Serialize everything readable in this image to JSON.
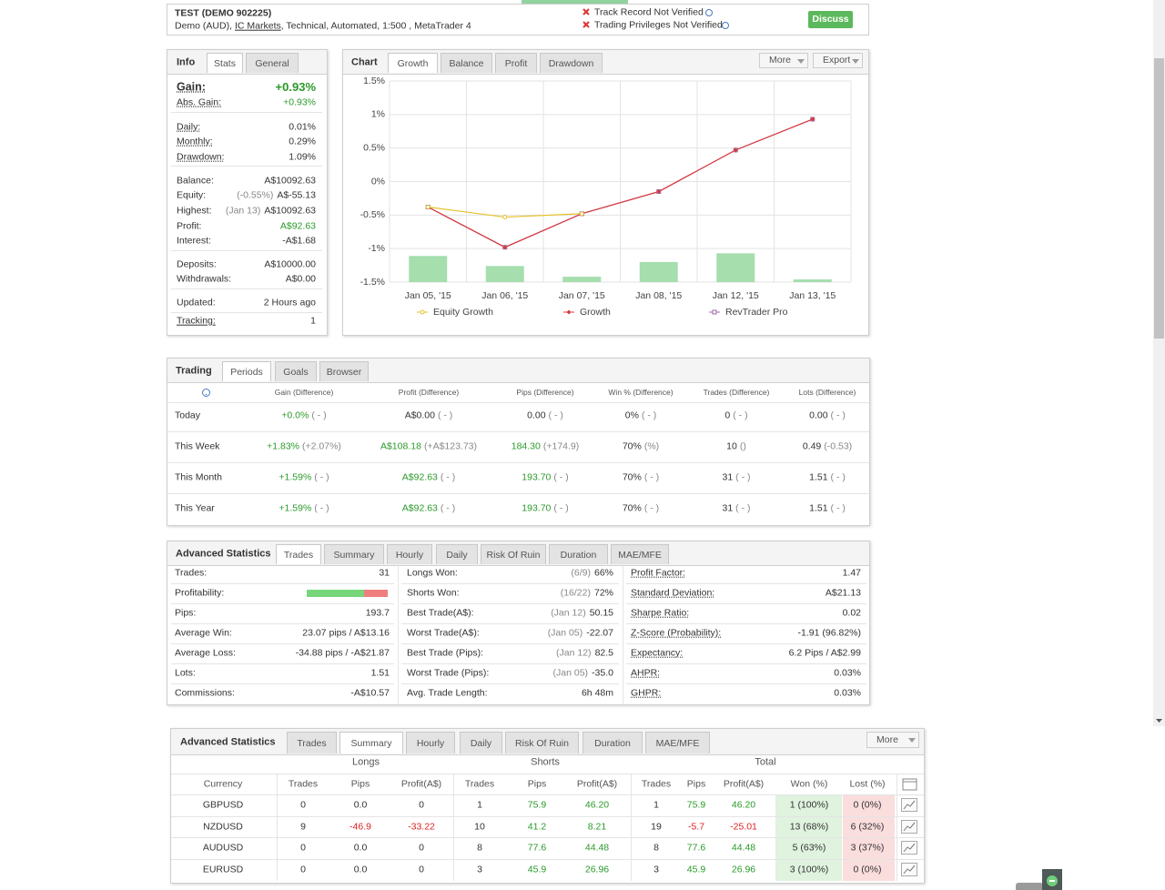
{
  "header": {
    "title": "TEST (DEMO 902225)",
    "sub_pre": "Demo (AUD),",
    "broker": "IC Markets",
    "sub_post": ", Technical, Automated, 1:500 , MetaTrader 4",
    "notices": [
      "Track Record Not Verified",
      "Trading Privileges Not Verified"
    ],
    "button": "Discuss"
  },
  "info": {
    "title": "Info",
    "tabs": [
      "Stats",
      "General"
    ],
    "groups": [
      [
        {
          "label": "Gain:",
          "value": "+0.93%"
        },
        {
          "label": "Abs. Gain:",
          "value": "+0.93%"
        }
      ],
      [
        {
          "label": "Daily:",
          "value": "0.01%"
        },
        {
          "label": "Monthly:",
          "value": "0.29%"
        },
        {
          "label": "Drawdown:",
          "value": "1.09%"
        }
      ],
      [
        {
          "label": "Balance:",
          "value": "A$10092.63"
        },
        {
          "label": "Equity:",
          "note": "(-0.55%)",
          "value": "A$-55.13"
        },
        {
          "label": "Highest:",
          "note": "(Jan 13)",
          "value": "A$10092.63"
        },
        {
          "label": "Profit:",
          "value": "A$92.63"
        },
        {
          "label": "Interest:",
          "value": "-A$1.68"
        }
      ],
      [
        {
          "label": "Deposits:",
          "value": "A$10000.00"
        },
        {
          "label": "Withdrawals:",
          "value": "A$0.00"
        }
      ],
      [
        {
          "label": "Updated:",
          "value": "2 Hours ago"
        },
        {
          "label": "Tracking:",
          "value": "1"
        }
      ]
    ]
  },
  "chart_panel": {
    "title": "Chart",
    "tabs": [
      "Growth",
      "Balance",
      "Profit",
      "Drawdown"
    ],
    "menus": [
      "More",
      "Export"
    ]
  },
  "chart_data": {
    "type": "line",
    "categories": [
      "Jan 05, '15",
      "Jan 06, '15",
      "Jan 07, '15",
      "Jan 08, '15",
      "Jan 12, '15",
      "Jan 13, '15"
    ],
    "ylim": [
      -1.5,
      1.5
    ],
    "yticks": [
      {
        "value": 1.5,
        "label": "1.5%"
      },
      {
        "value": 1,
        "label": "1%"
      },
      {
        "value": 0.5,
        "label": "0.5%"
      },
      {
        "value": 0,
        "label": "0%"
      },
      {
        "value": -0.5,
        "label": "-0.5%"
      },
      {
        "value": -1,
        "label": "-1%"
      },
      {
        "value": -1.5,
        "label": "-1.5%"
      }
    ],
    "grid": true,
    "legend": "bottom",
    "series": [
      {
        "name": "Equity Growth",
        "color": "#e6c12a",
        "marker": "circle",
        "values": [
          -0.38,
          -0.53,
          -0.48,
          null,
          null,
          null
        ]
      },
      {
        "name": "Growth",
        "color": "#d9393a",
        "marker": "diamond",
        "values": [
          -0.38,
          -0.98,
          -0.48,
          -0.15,
          0.47,
          0.93
        ]
      },
      {
        "name": "RevTrader Pro",
        "color": "#9b6aa6",
        "marker": "square",
        "values": [
          -0.38,
          -0.98,
          -0.48,
          -0.15,
          0.47,
          0.93
        ]
      },
      {
        "type": "bar",
        "color": "#a6deae",
        "values": [
          -1.11,
          -1.26,
          -1.42,
          -1.2,
          -1.07,
          -1.46
        ]
      }
    ]
  },
  "trading": {
    "title": "Trading",
    "tabs": [
      "Periods",
      "Goals",
      "Browser"
    ],
    "columns": [
      "Gain (Difference)",
      "Profit (Difference)",
      "Pips (Difference)",
      "Win % (Difference)",
      "Trades (Difference)",
      "Lots (Difference)"
    ],
    "rows": [
      {
        "label": "Today",
        "cells": [
          {
            "v": "+0.0%",
            "d": "( - )",
            "c": "green"
          },
          {
            "v": "A$0.00",
            "d": "( - )"
          },
          {
            "v": "0.00",
            "d": "( - )"
          },
          {
            "v": "0%",
            "d": "( - )"
          },
          {
            "v": "0",
            "d": "( - )"
          },
          {
            "v": "0.00",
            "d": "( - )"
          }
        ]
      },
      {
        "label": "This Week",
        "cells": [
          {
            "v": "+1.83%",
            "d": "(+2.07%)",
            "c": "green"
          },
          {
            "v": "A$108.18",
            "d": "(+A$123.73)",
            "c": "green"
          },
          {
            "v": "184.30",
            "d": "(+174.9)",
            "c": "green"
          },
          {
            "v": "70%",
            "d": "(%)"
          },
          {
            "v": "10",
            "d": "()"
          },
          {
            "v": "0.49",
            "d": "(-0.53)"
          }
        ]
      },
      {
        "label": "This Month",
        "cells": [
          {
            "v": "+1.59%",
            "d": "( - )",
            "c": "green"
          },
          {
            "v": "A$92.63",
            "d": "( - )",
            "c": "green"
          },
          {
            "v": "193.70",
            "d": "( - )",
            "c": "green"
          },
          {
            "v": "70%",
            "d": "( - )"
          },
          {
            "v": "31",
            "d": "( - )"
          },
          {
            "v": "1.51",
            "d": "( - )"
          }
        ]
      },
      {
        "label": "This Year",
        "cells": [
          {
            "v": "+1.59%",
            "d": "( - )",
            "c": "green"
          },
          {
            "v": "A$92.63",
            "d": "( - )",
            "c": "green"
          },
          {
            "v": "193.70",
            "d": "( - )",
            "c": "green"
          },
          {
            "v": "70%",
            "d": "( - )"
          },
          {
            "v": "31",
            "d": "( - )"
          },
          {
            "v": "1.51",
            "d": "( - )"
          }
        ]
      }
    ]
  },
  "advanced_stats": {
    "title": "Advanced Statistics",
    "tabs": [
      "Trades",
      "Summary",
      "Hourly",
      "Daily",
      "Risk Of Ruin",
      "Duration",
      "MAE/MFE"
    ],
    "columns": [
      [
        {
          "label": "Trades:",
          "value": "31"
        },
        {
          "label": "Profitability:",
          "bar": 71
        },
        {
          "label": "Pips:",
          "value": "193.7"
        },
        {
          "label": "Average Win:",
          "value": "23.07 pips / A$13.16"
        },
        {
          "label": "Average Loss:",
          "value": "-34.88 pips / -A$21.87"
        },
        {
          "label": "Lots:",
          "value": "1.51"
        },
        {
          "label": "Commissions:",
          "value": "-A$10.57"
        }
      ],
      [
        {
          "label": "Longs Won:",
          "note": "(6/9)",
          "value": "66%"
        },
        {
          "label": "Shorts Won:",
          "note": "(16/22)",
          "value": "72%"
        },
        {
          "label": "Best Trade(A$):",
          "note": "(Jan 12)",
          "value": "50.15"
        },
        {
          "label": "Worst Trade(A$):",
          "note": "(Jan 05)",
          "value": "-22.07"
        },
        {
          "label": "Best Trade (Pips):",
          "note": "(Jan 12)",
          "value": "82.5"
        },
        {
          "label": "Worst Trade (Pips):",
          "note": "(Jan 05)",
          "value": "-35.0"
        },
        {
          "label": "Avg. Trade Length:",
          "value": "6h 48m"
        }
      ],
      [
        {
          "label": "Profit Factor:",
          "value": "1.47"
        },
        {
          "label": "Standard Deviation:",
          "value": "A$21.13"
        },
        {
          "label": "Sharpe Ratio:",
          "value": "0.02"
        },
        {
          "label": "Z-Score (Probability):",
          "value": "-1.91 (96.82%)"
        },
        {
          "label": "Expectancy:",
          "value": "6.2 Pips / A$2.99"
        },
        {
          "label": "AHPR:",
          "value": "0.03%"
        },
        {
          "label": "GHPR:",
          "value": "0.03%"
        }
      ]
    ]
  },
  "summary": {
    "title": "Advanced Statistics",
    "tabs": [
      "Trades",
      "Summary",
      "Hourly",
      "Daily",
      "Risk Of Ruin",
      "Duration",
      "MAE/MFE"
    ],
    "more": "More",
    "groups": [
      "Longs",
      "Shorts",
      "Total"
    ],
    "columns": [
      "Currency",
      "Trades",
      "Pips",
      "Profit(A$)",
      "Trades",
      "Pips",
      "Profit(A$)",
      "Trades",
      "Pips",
      "Profit(A$)",
      "Won (%)",
      "Lost (%)"
    ],
    "rows": [
      [
        "GBPUSD",
        "0",
        "0.0",
        "0",
        "1",
        "75.9",
        "46.20",
        "1",
        "75.9",
        "46.20",
        "1 (100%)",
        "0 (0%)"
      ],
      [
        "NZDUSD",
        "9",
        "-46.9",
        "-33.22",
        "10",
        "41.2",
        "8.21",
        "19",
        "-5.7",
        "-25.01",
        "13 (68%)",
        "6 (32%)"
      ],
      [
        "AUDUSD",
        "0",
        "0.0",
        "0",
        "8",
        "77.6",
        "44.48",
        "8",
        "77.6",
        "44.48",
        "5 (63%)",
        "3 (37%)"
      ],
      [
        "EURUSD",
        "0",
        "0.0",
        "0",
        "3",
        "45.9",
        "26.96",
        "3",
        "45.9",
        "26.96",
        "3 (100%)",
        "0 (0%)"
      ]
    ]
  }
}
